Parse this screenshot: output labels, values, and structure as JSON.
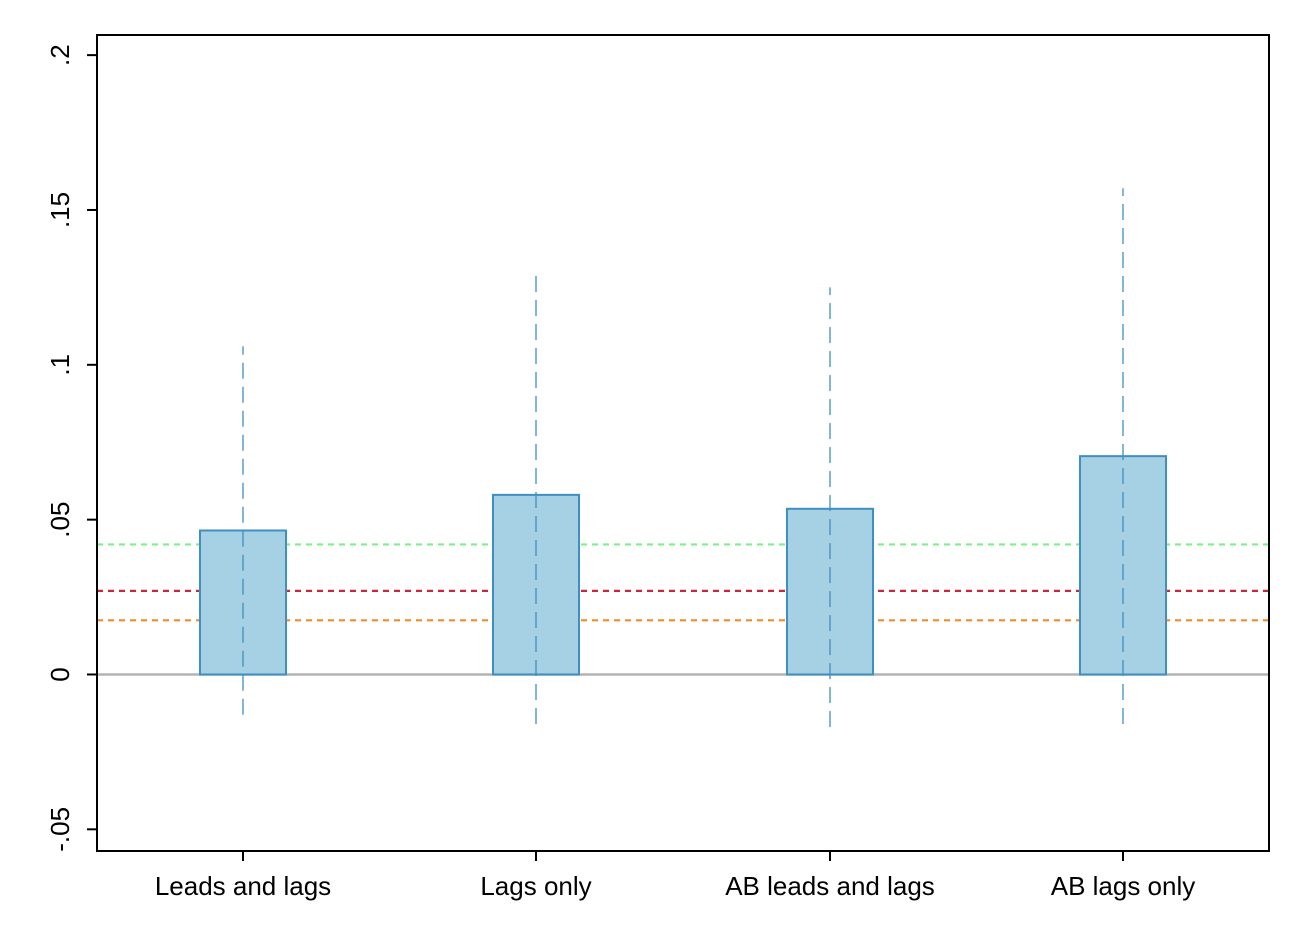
{
  "chart_data": {
    "type": "bar",
    "categories": [
      "Leads and lags",
      "Lags only",
      "AB leads and lags",
      "AB lags only"
    ],
    "values": [
      0.0465,
      0.058,
      0.0535,
      0.0705
    ],
    "error_bars": {
      "lower": [
        -0.013,
        -0.016,
        -0.017,
        -0.016
      ],
      "upper": [
        0.106,
        0.131,
        0.125,
        0.157
      ]
    },
    "reference_lines": [
      {
        "y": 0.042,
        "color": "#7ef08a",
        "style": "dashed"
      },
      {
        "y": 0.027,
        "color": "#c8283c",
        "style": "dashed"
      },
      {
        "y": 0.0175,
        "color": "#f08a2a",
        "style": "dashed"
      },
      {
        "y": 0,
        "color": "#b4b4b4",
        "style": "solid"
      }
    ],
    "ylim": [
      -0.057,
      0.2065
    ],
    "yticks": [
      -0.05,
      0,
      0.05,
      0.1,
      0.15,
      0.2
    ],
    "ytick_labels": [
      "-.05",
      "0",
      ".05",
      ".1",
      ".15",
      ".2"
    ],
    "title": "",
    "xlabel": "",
    "ylabel": "",
    "grid": false,
    "bar_fill": "#a6d1e5",
    "bar_stroke": "#3f8fbf",
    "error_bar_color": "#3f8fbf"
  }
}
